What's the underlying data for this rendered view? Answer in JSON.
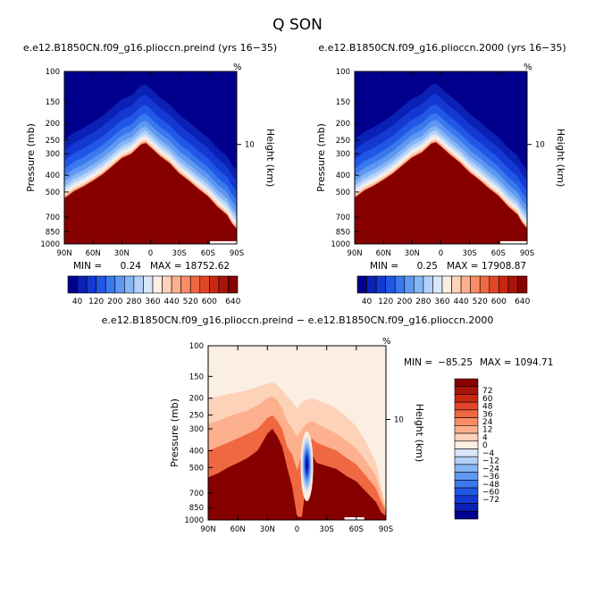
{
  "figure": {
    "title": "Q SON"
  },
  "chart_data": [
    {
      "type": "heatmap",
      "title": "e.e12.B1850CN.f09_g16.plioccn.preind (yrs 16−35)",
      "xlabel": "",
      "ylabel": "Pressure (mb)",
      "ylabel_right": "Height (km)",
      "corner_label": "%",
      "x_ticks": [
        "90N",
        "60N",
        "30N",
        "0",
        "30S",
        "60S",
        "90S"
      ],
      "x_values": [
        90,
        60,
        30,
        0,
        -30,
        -60,
        -90
      ],
      "y_ticks": [
        "100",
        "150",
        "200",
        "250",
        "300",
        "400",
        "500",
        "700",
        "850",
        "1000"
      ],
      "y_values": [
        100,
        150,
        200,
        250,
        300,
        400,
        500,
        700,
        850,
        1000
      ],
      "y_scale": "log",
      "ylim": [
        1000,
        100
      ],
      "right_ticks": [
        "10"
      ],
      "min_label": "MIN =",
      "min_value": "0.24",
      "max_label": "MAX =",
      "max_value": "18752.62",
      "colorbar": {
        "orientation": "horizontal",
        "labels": [
          "40",
          "120",
          "200",
          "280",
          "360",
          "440",
          "520",
          "600",
          "640"
        ],
        "colors": [
          "#00008c",
          "#0b20b4",
          "#1438d2",
          "#2157e6",
          "#3a78ee",
          "#5e98f2",
          "#86b6f5",
          "#b3d1f8",
          "#d8e7fa",
          "#fbeee2",
          "#fcd2b9",
          "#fcb08d",
          "#f98c66",
          "#f06842",
          "#e14528",
          "#c8280f",
          "#a8140a",
          "#870000"
        ]
      },
      "profile": {
        "lat": [
          90,
          80,
          70,
          60,
          50,
          40,
          30,
          20,
          10,
          5,
          0,
          -10,
          -20,
          -30,
          -40,
          -50,
          -60,
          -70,
          -80,
          -85,
          -90
        ],
        "p": [
          545,
          495,
          465,
          430,
          395,
          355,
          318,
          300,
          265,
          260,
          275,
          310,
          340,
          390,
          430,
          480,
          530,
          610,
          680,
          760,
          820
        ]
      }
    },
    {
      "type": "heatmap",
      "title": "e.e12.B1850CN.f09_g16.plioccn.2000 (yrs 16−35)",
      "xlabel": "",
      "ylabel": "Pressure (mb)",
      "ylabel_right": "Height (km)",
      "corner_label": "%",
      "x_ticks": [
        "90N",
        "60N",
        "30N",
        "0",
        "30S",
        "60S",
        "90S"
      ],
      "x_values": [
        90,
        60,
        30,
        0,
        -30,
        -60,
        -90
      ],
      "y_ticks": [
        "100",
        "150",
        "200",
        "250",
        "300",
        "400",
        "500",
        "700",
        "850",
        "1000"
      ],
      "y_values": [
        100,
        150,
        200,
        250,
        300,
        400,
        500,
        700,
        850,
        1000
      ],
      "y_scale": "log",
      "ylim": [
        1000,
        100
      ],
      "right_ticks": [
        "10"
      ],
      "min_label": "MIN =",
      "min_value": "0.25",
      "max_label": "MAX =",
      "max_value": "17908.87",
      "colorbar": {
        "orientation": "horizontal",
        "labels": [
          "40",
          "120",
          "200",
          "280",
          "360",
          "440",
          "520",
          "600",
          "640"
        ],
        "colors": [
          "#00008c",
          "#0b20b4",
          "#1438d2",
          "#2157e6",
          "#3a78ee",
          "#5e98f2",
          "#86b6f5",
          "#b3d1f8",
          "#d8e7fa",
          "#fbeee2",
          "#fcd2b9",
          "#fcb08d",
          "#f98c66",
          "#f06842",
          "#e14528",
          "#c8280f",
          "#a8140a",
          "#870000"
        ]
      },
      "profile": {
        "lat": [
          90,
          80,
          70,
          60,
          50,
          40,
          30,
          20,
          10,
          5,
          0,
          -10,
          -20,
          -30,
          -40,
          -50,
          -60,
          -70,
          -80,
          -85,
          -90
        ],
        "p": [
          540,
          490,
          460,
          425,
          390,
          350,
          315,
          295,
          262,
          258,
          272,
          305,
          338,
          385,
          425,
          475,
          525,
          605,
          675,
          755,
          815
        ]
      }
    },
    {
      "type": "heatmap",
      "title": "e.e12.B1850CN.f09_g16.plioccn.preind − e.e12.B1850CN.f09_g16.plioccn.2000",
      "xlabel": "",
      "ylabel": "Pressure (mb)",
      "ylabel_right": "Height (km)",
      "corner_label": "%",
      "x_ticks": [
        "90N",
        "60N",
        "30N",
        "0",
        "30S",
        "60S",
        "90S"
      ],
      "x_values": [
        90,
        60,
        30,
        0,
        -30,
        -60,
        -90
      ],
      "y_ticks": [
        "100",
        "150",
        "200",
        "250",
        "300",
        "400",
        "500",
        "700",
        "850",
        "1000"
      ],
      "y_values": [
        100,
        150,
        200,
        250,
        300,
        400,
        500,
        700,
        850,
        1000
      ],
      "y_scale": "log",
      "ylim": [
        1000,
        100
      ],
      "right_ticks": [
        "10"
      ],
      "min_label": "MIN =",
      "min_value": "−85.25",
      "max_label": "MAX =",
      "max_value": "1094.71",
      "colorbar": {
        "orientation": "vertical",
        "labels": [
          "72",
          "60",
          "48",
          "36",
          "24",
          "12",
          "4",
          "0",
          "−4",
          "−12",
          "−24",
          "−36",
          "−48",
          "−60",
          "−72"
        ],
        "colors": [
          "#870000",
          "#a8140a",
          "#c8280f",
          "#e14528",
          "#f06842",
          "#f98c66",
          "#fcb08d",
          "#fcd2b9",
          "#fbeee2",
          "#d8e7fa",
          "#b3d1f8",
          "#86b6f5",
          "#5e98f2",
          "#3a78ee",
          "#2157e6",
          "#1438d2",
          "#0b20b4",
          "#00008c"
        ]
      },
      "bands": {
        "lat": [
          90,
          80,
          70,
          60,
          50,
          40,
          30,
          25,
          20,
          15,
          10,
          5,
          0,
          -5,
          -10,
          -15,
          -20,
          -30,
          -40,
          -50,
          -60,
          -70,
          -80,
          -85,
          -90
        ],
        "p1": [
          570,
          540,
          500,
          470,
          440,
          400,
          320,
          300,
          330,
          380,
          500,
          640,
          960,
          960,
          560,
          420,
          470,
          490,
          510,
          560,
          600,
          690,
          790,
          900,
          950
        ],
        "p2": [
          400,
          380,
          360,
          340,
          320,
          300,
          260,
          250,
          270,
          300,
          380,
          420,
          520,
          420,
          380,
          340,
          360,
          380,
          400,
          440,
          480,
          560,
          660,
          780,
          900
        ],
        "p3": [
          280,
          270,
          255,
          245,
          235,
          220,
          200,
          195,
          205,
          230,
          270,
          300,
          330,
          300,
          280,
          270,
          280,
          300,
          320,
          350,
          390,
          460,
          560,
          700,
          870
        ],
        "p4": [
          200,
          195,
          190,
          185,
          180,
          172,
          165,
          162,
          168,
          180,
          195,
          210,
          230,
          210,
          205,
          200,
          205,
          215,
          230,
          255,
          290,
          360,
          470,
          640,
          850
        ]
      },
      "anomaly": {
        "lat": -10,
        "p_top": 310,
        "p_bottom": 780,
        "p_center": 480,
        "value": "−85.25"
      }
    }
  ]
}
